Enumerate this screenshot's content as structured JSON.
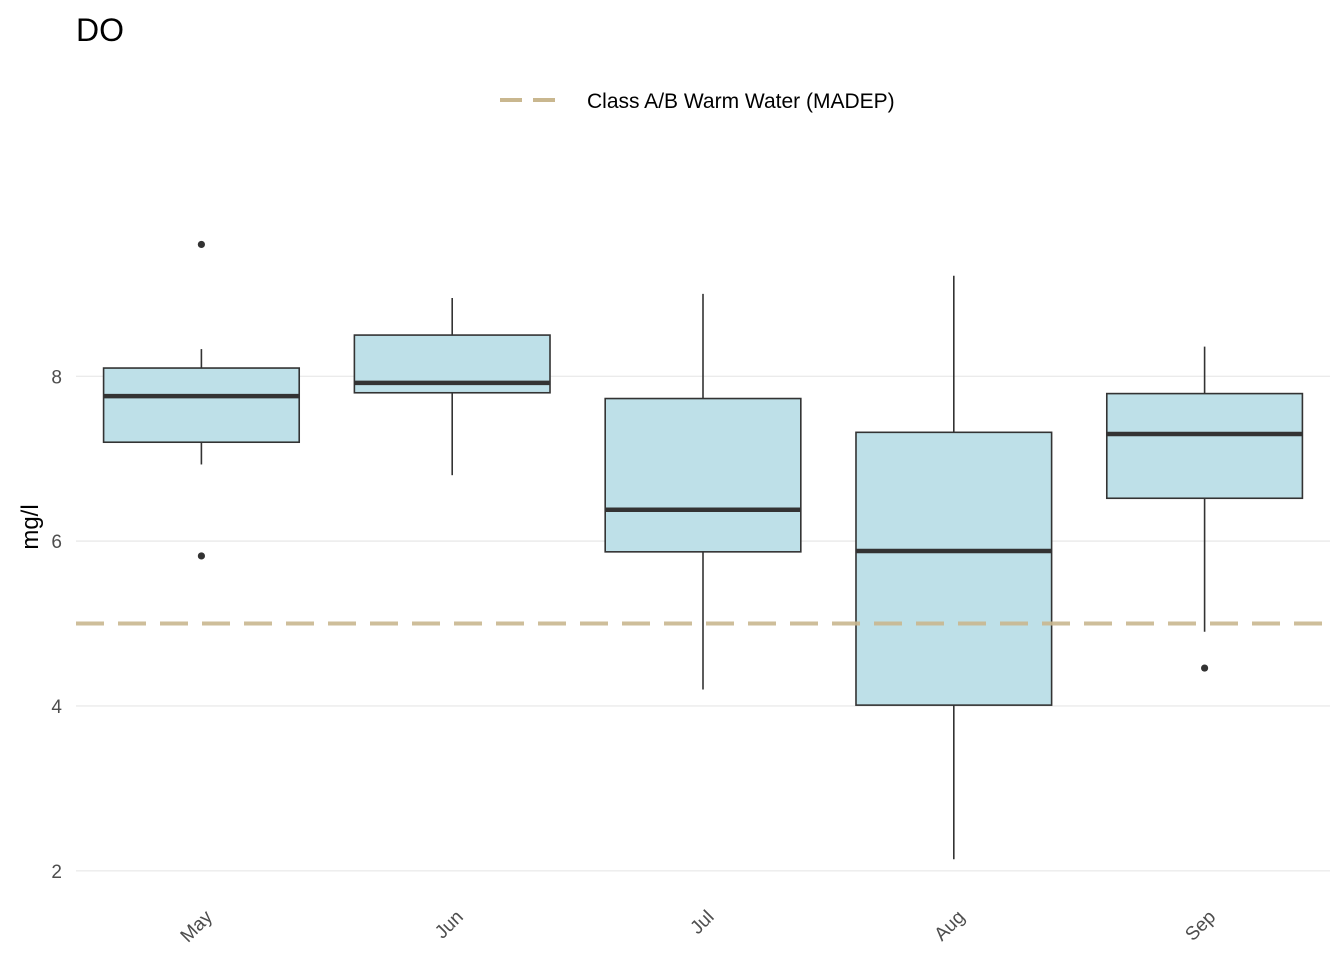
{
  "chart_data": {
    "type": "box",
    "title": "DO",
    "xlabel": "",
    "ylabel": "mg/l",
    "ylim": [
      1.5,
      10.6
    ],
    "yticks": [
      2,
      4,
      6,
      8
    ],
    "ytick_labels": [
      "2",
      "4",
      "6",
      "8"
    ],
    "grid": "horizontal major lines",
    "legend_position": "top",
    "colors": {
      "box_fill": "#bee0e8",
      "box_outline": "#333333",
      "reference_line": "#c9b78f",
      "gridline": "#ebebeb"
    },
    "categories": [
      "May",
      "Jun",
      "Jul",
      "Aug",
      "Sep"
    ],
    "boxes": [
      {
        "category": "May",
        "whisker_low": 6.93,
        "q1": 7.2,
        "median": 7.76,
        "q3": 8.1,
        "whisker_high": 8.33,
        "outliers": [
          9.6,
          5.82
        ]
      },
      {
        "category": "Jun",
        "whisker_low": 6.8,
        "q1": 7.8,
        "median": 7.92,
        "q3": 8.5,
        "whisker_high": 8.95,
        "outliers": []
      },
      {
        "category": "Jul",
        "whisker_low": 4.2,
        "q1": 5.87,
        "median": 6.38,
        "q3": 7.73,
        "whisker_high": 9.0,
        "outliers": []
      },
      {
        "category": "Aug",
        "whisker_low": 2.14,
        "q1": 4.01,
        "median": 5.88,
        "q3": 7.32,
        "whisker_high": 9.22,
        "outliers": []
      },
      {
        "category": "Sep",
        "whisker_low": 4.9,
        "q1": 6.52,
        "median": 7.3,
        "q3": 7.79,
        "whisker_high": 8.36,
        "outliers": [
          4.46
        ]
      }
    ],
    "reference_lines": [
      {
        "name": "Class A/B Warm Water (MADEP)",
        "y": 5.0,
        "style": "dashed"
      }
    ]
  }
}
